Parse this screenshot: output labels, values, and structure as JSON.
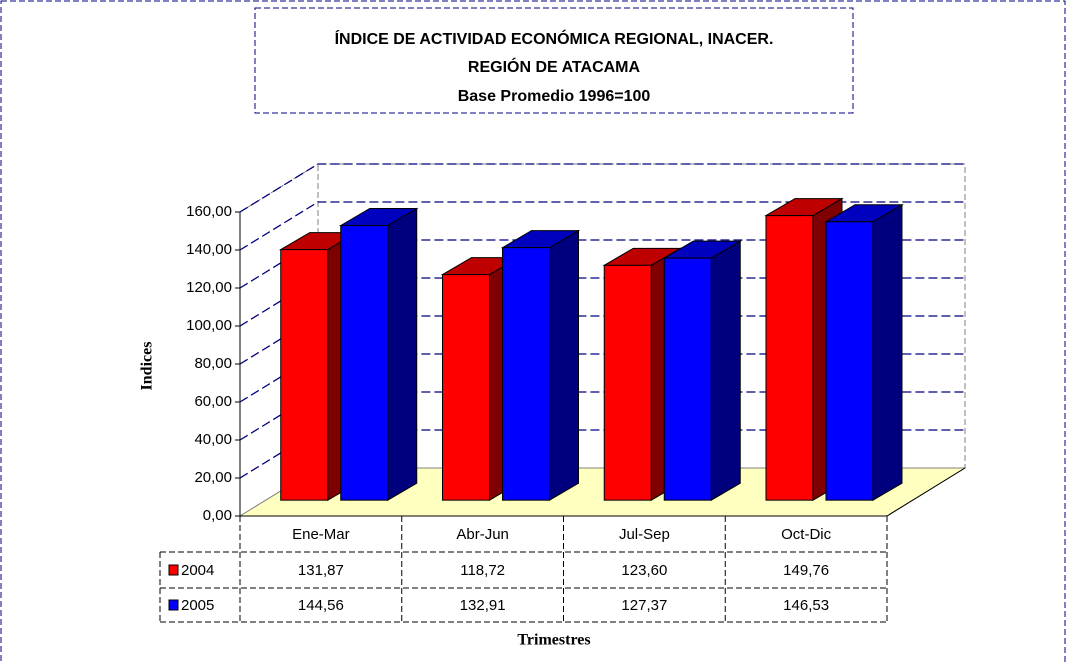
{
  "chart_data": {
    "type": "bar3d",
    "title": "ÍNDICE DE ACTIVIDAD ECONÓMICA REGIONAL, INACER.",
    "subtitle": [
      "REGIÓN DE ATACAMA",
      "Base Promedio 1996=100"
    ],
    "y_label": "Indices",
    "x_label": "Trimestres",
    "categories": [
      "Ene-Mar",
      "Abr-Jun",
      "Jul-Sep",
      "Oct-Dic"
    ],
    "series": [
      {
        "name": "2004",
        "color": "#ff0000",
        "values": [
          131.87,
          118.72,
          123.6,
          149.76
        ],
        "value_labels": [
          "131,87",
          "118,72",
          "123,60",
          "149,76"
        ]
      },
      {
        "name": "2005",
        "color": "#0000ff",
        "values": [
          144.56,
          132.91,
          127.37,
          146.53
        ],
        "value_labels": [
          "144,56",
          "132,91",
          "127,37",
          "146,53"
        ]
      }
    ],
    "ylim": [
      0,
      160
    ],
    "yticks": [
      {
        "value": 0,
        "label": "0,00"
      },
      {
        "value": 20,
        "label": "20,00"
      },
      {
        "value": 40,
        "label": "40,00"
      },
      {
        "value": 60,
        "label": "60,00"
      },
      {
        "value": 80,
        "label": "80,00"
      },
      {
        "value": 100,
        "label": "100,00"
      },
      {
        "value": 120,
        "label": "120,00"
      },
      {
        "value": 140,
        "label": "140,00"
      },
      {
        "value": 160,
        "label": "160,00"
      }
    ],
    "grid": true,
    "legend": "table"
  }
}
